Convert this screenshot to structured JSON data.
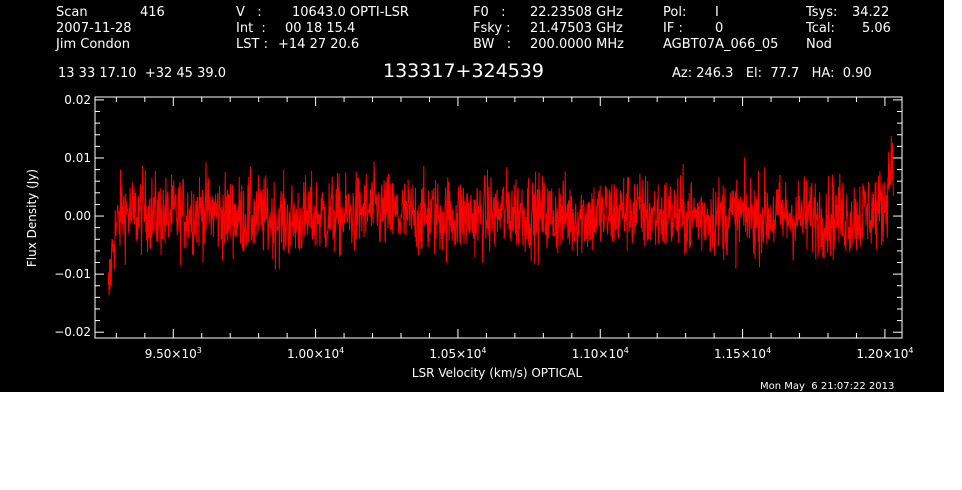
{
  "header": {
    "col1": {
      "scan_label": "Scan",
      "scan_value": "416",
      "date": "2007-11-28",
      "observer": "Jim Condon"
    },
    "col2": {
      "v_label": "V   :",
      "v_value": "10643.0 OPTI-LSR",
      "int_label": "Int  :",
      "int_value": "00 18 15.4",
      "lst_label": "LST :",
      "lst_value": "+14 27 20.6"
    },
    "col3": {
      "f0_label": "F0   :",
      "f0_value": "22.23508 GHz",
      "fsky_label": "Fsky :",
      "fsky_value": "21.47503 GHz",
      "bw_label": "BW   :",
      "bw_value": "200.0000 MHz"
    },
    "col4": {
      "pol_label": "Pol:",
      "pol_value": "I",
      "if_label": "IF :",
      "if_value": "0",
      "project": "AGBT07A_066_05"
    },
    "col5": {
      "tsys_label": "Tsys:",
      "tsys_value": "34.22",
      "tcal_label": "Tcal:",
      "tcal_value": "5.06",
      "mode": "Nod"
    },
    "coords": "13 33 17.10  +32 45 39.0",
    "source": "133317+324539",
    "azel": "Az: 246.3   El:  77.7   HA:  0.90"
  },
  "footer": {
    "timestamp": "Mon May  6 21:07:22 2013"
  },
  "chart_data": {
    "type": "line",
    "xlabel": "LSR Velocity (km/s) OPTICAL",
    "ylabel": "Flux Density (Jy)",
    "xlim": [
      9225,
      12060
    ],
    "ylim": [
      -0.021,
      0.0205
    ],
    "x_ticks": [
      {
        "value": 9500,
        "mant": "9.50",
        "exp": "3"
      },
      {
        "value": 10000,
        "mant": "1.00",
        "exp": "4"
      },
      {
        "value": 10500,
        "mant": "1.05",
        "exp": "4"
      },
      {
        "value": 11000,
        "mant": "1.10",
        "exp": "4"
      },
      {
        "value": 11500,
        "mant": "1.15",
        "exp": "4"
      },
      {
        "value": 12000,
        "mant": "1.20",
        "exp": "4"
      }
    ],
    "y_ticks": [
      {
        "value": 0.02,
        "label": "0.02"
      },
      {
        "value": 0.01,
        "label": "0.01"
      },
      {
        "value": 0.0,
        "label": "0.00"
      },
      {
        "value": -0.01,
        "label": "−0.01"
      },
      {
        "value": -0.02,
        "label": "−0.02"
      }
    ],
    "series": [
      {
        "color": "#ff0000",
        "x": [
          9270,
          9290,
          9320,
          9360,
          9400,
          9450,
          9500,
          9600,
          9700,
          9800,
          9900,
          10000,
          10100,
          10200,
          10300,
          10400,
          10500,
          10600,
          10700,
          10800,
          10900,
          11000,
          11100,
          11200,
          11300,
          11400,
          11500,
          11600,
          11700,
          11800,
          11900,
          11950,
          11980,
          12000,
          12010,
          12020,
          12030
        ],
        "y": [
          -0.015,
          -0.004,
          0.001,
          0.0,
          0.001,
          0.0,
          0.0,
          0.001,
          0.0,
          0.0,
          -0.001,
          0.0,
          0.0,
          0.001,
          0.0,
          0.0,
          0.0,
          0.0,
          0.001,
          0.0,
          0.0,
          0.0,
          0.001,
          0.0,
          0.0,
          0.0,
          0.0,
          0.0,
          0.0,
          0.0,
          0.0,
          0.001,
          0.001,
          0.002,
          0.005,
          0.009,
          0.012
        ],
        "noise_rms_approx": 0.0035
      }
    ]
  }
}
